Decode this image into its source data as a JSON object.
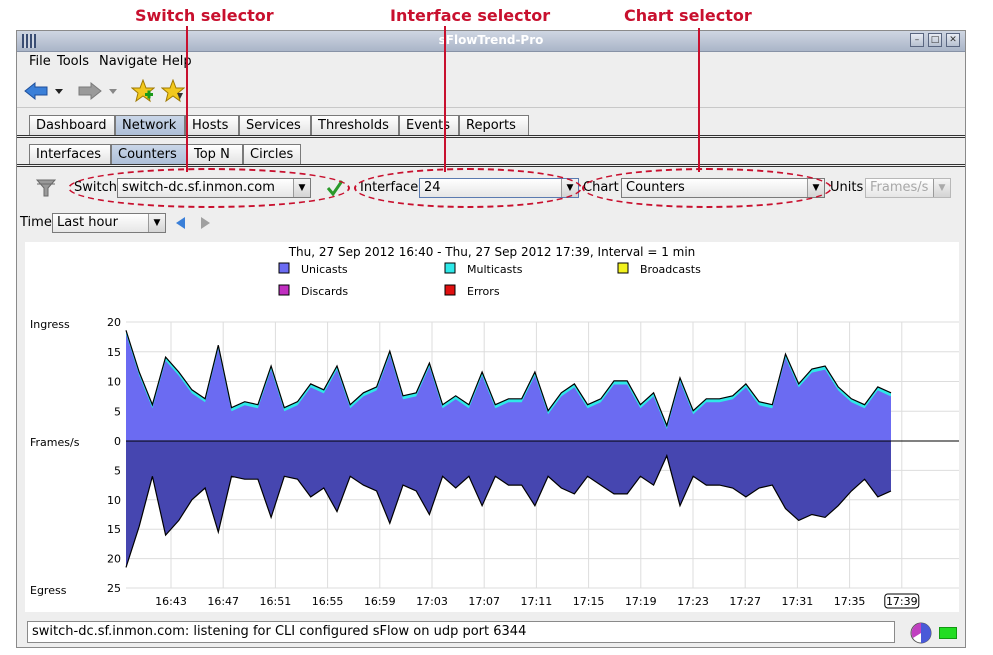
{
  "annotations": {
    "switch_selector": "Switch selector",
    "interface_selector": "Interface selector",
    "chart_selector": "Chart selector"
  },
  "window": {
    "title": "sFlowTrend-Pro"
  },
  "menu": [
    "File",
    "Tools",
    "Navigate",
    "Help"
  ],
  "main_tabs": [
    {
      "label": "Dashboard"
    },
    {
      "label": "Network",
      "selected": true
    },
    {
      "label": "Hosts"
    },
    {
      "label": "Services"
    },
    {
      "label": "Thresholds"
    },
    {
      "label": "Events"
    },
    {
      "label": "Reports"
    }
  ],
  "sub_tabs": [
    {
      "label": "Interfaces"
    },
    {
      "label": "Counters",
      "selected": true
    },
    {
      "label": "Top N"
    },
    {
      "label": "Circles"
    }
  ],
  "controls": {
    "switch_label": "Switch",
    "switch_value": "switch-dc.sf.inmon.com",
    "interface_label": "Interface",
    "interface_value": "24",
    "chart_label": "Chart",
    "chart_value": "Counters",
    "units_label": "Units",
    "units_value": "Frames/s",
    "time_label": "Time",
    "time_value": "Last hour"
  },
  "status": {
    "message": "switch-dc.sf.inmon.com: listening for CLI configured sFlow on udp port 6344"
  },
  "colors": {
    "unicast": "#6b6bf2",
    "multicast": "#2ee8e8",
    "broadcast": "#f2f21e",
    "discard": "#c02ec0",
    "error": "#e01010",
    "egress": "#4646b0",
    "accent_red": "#c8102e"
  },
  "chart_data": {
    "type": "area",
    "title": "Thu, 27 Sep 2012 16:40 - Thu, 27 Sep 2012 17:39, Interval = 1 min",
    "legend": [
      "Unicasts",
      "Multicasts",
      "Broadcasts",
      "Discards",
      "Errors"
    ],
    "ylabel_top": "Ingress",
    "ylabel_mid": "Frames/s",
    "ylabel_bottom": "Egress",
    "ingress_ticks": [
      "20",
      "15",
      "10",
      "5",
      "0"
    ],
    "egress_ticks": [
      "5",
      "10",
      "15",
      "20",
      "25"
    ],
    "x_ticks": [
      "16:43",
      "16:47",
      "16:51",
      "16:55",
      "16:59",
      "17:03",
      "17:07",
      "17:11",
      "17:15",
      "17:19",
      "17:23",
      "17:27",
      "17:31",
      "17:35",
      "17:39"
    ],
    "ingress_ylim": [
      0,
      20
    ],
    "egress_ylim": [
      0,
      25
    ],
    "ingress_unicast": [
      18,
      11,
      5.5,
      13.5,
      11,
      8,
      6.5,
      15.5,
      5,
      6,
      5.5,
      12,
      5,
      6,
      9,
      8,
      12,
      5.5,
      7.5,
      8.5,
      14.5,
      7,
      7.5,
      12.5,
      5.5,
      7,
      5.5,
      11,
      5.5,
      6.5,
      6.5,
      11,
      4.5,
      7.5,
      9,
      5.5,
      6.5,
      9.5,
      9.5,
      5.5,
      7.5,
      2,
      10,
      4.5,
      6.5,
      6.5,
      7,
      9,
      6,
      5.5,
      14,
      9,
      11.5,
      12,
      8.5,
      6.5,
      5.5,
      8.5,
      7.5
    ],
    "ingress_multicast": [
      0.6,
      0.6,
      0.6,
      0.6,
      0.6,
      0.6,
      0.6,
      0.6,
      0.6,
      0.6,
      0.6,
      0.6,
      0.6,
      0.6,
      0.6,
      0.6,
      0.6,
      0.6,
      0.6,
      0.6,
      0.6,
      0.6,
      0.6,
      0.6,
      0.6,
      0.6,
      0.6,
      0.6,
      0.6,
      0.6,
      0.6,
      0.6,
      0.6,
      0.6,
      0.6,
      0.6,
      0.6,
      0.6,
      0.6,
      0.6,
      0.6,
      0.6,
      0.6,
      0.6,
      0.6,
      0.6,
      0.6,
      0.6,
      0.6,
      0.6,
      0.6,
      0.6,
      0.6,
      0.6,
      0.6,
      0.6,
      0.6,
      0.6,
      0.6
    ],
    "egress_unicast": [
      21.5,
      14.5,
      6,
      16,
      13.5,
      10,
      8,
      15.5,
      6,
      6.5,
      6.5,
      13,
      6,
      6.5,
      9.5,
      8,
      12,
      6,
      7.5,
      8.5,
      14,
      7.5,
      8.5,
      12.5,
      6,
      8,
      6,
      11,
      6,
      7.5,
      7.5,
      11,
      6,
      8,
      9,
      6,
      7.5,
      9,
      9,
      6,
      7.5,
      2.5,
      11,
      6,
      7.5,
      7.5,
      8,
      9.5,
      8,
      7.5,
      11.5,
      13.5,
      12.5,
      13,
      11,
      8.5,
      6.5,
      9.5,
      8.5
    ]
  }
}
